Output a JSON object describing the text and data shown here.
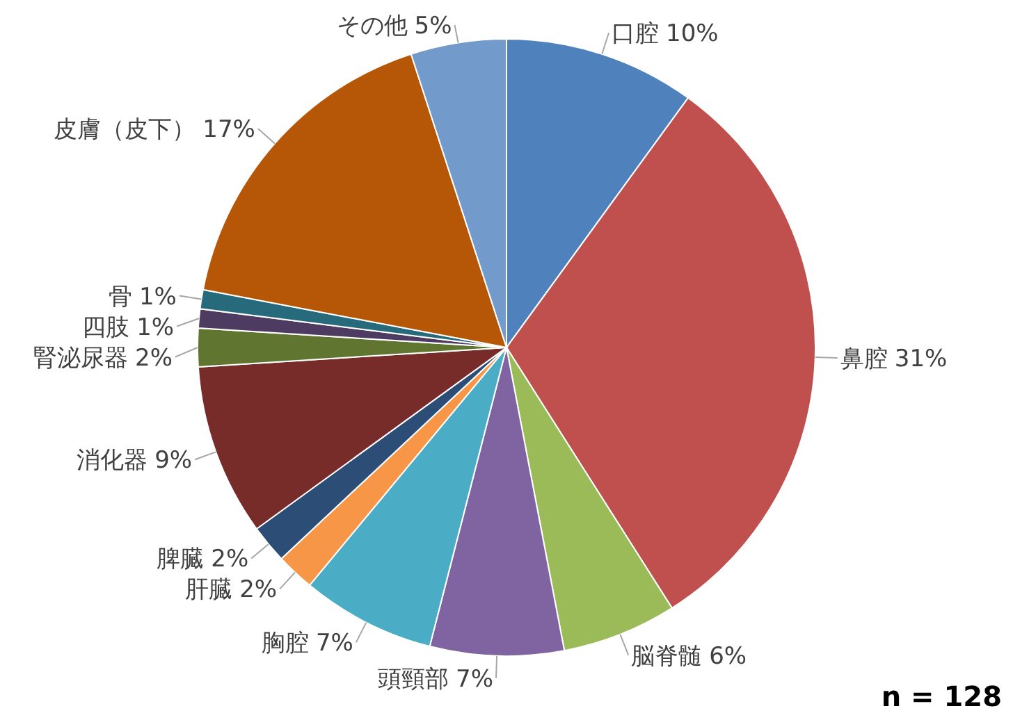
{
  "chart_data": {
    "type": "pie",
    "value_labels": [
      "10%",
      "31%",
      "6%",
      "7%",
      "7%",
      "2%",
      "2%",
      "9%",
      "2%",
      "1%",
      "1%",
      "17%",
      "5%"
    ],
    "categories": [
      "口腔",
      "鼻腔",
      "脳脊髄",
      "頭頸部",
      "胸腔",
      "肝臓",
      "脾臓",
      "消化器",
      "腎泌尿器",
      "四肢",
      "骨",
      "皮膚（皮下）",
      "その他"
    ],
    "values": [
      10,
      31,
      6,
      7,
      7,
      2,
      2,
      9,
      2,
      1,
      1,
      17,
      5
    ],
    "colors": [
      "#4f81bd",
      "#c0504d",
      "#9bbb59",
      "#8064a2",
      "#4bacc6",
      "#f79646",
      "#2c4d75",
      "#772c2a",
      "#5f7530",
      "#4d3b62",
      "#276a7c",
      "#b65708",
      "#729aca"
    ],
    "annotations": [
      "n = 128"
    ]
  }
}
